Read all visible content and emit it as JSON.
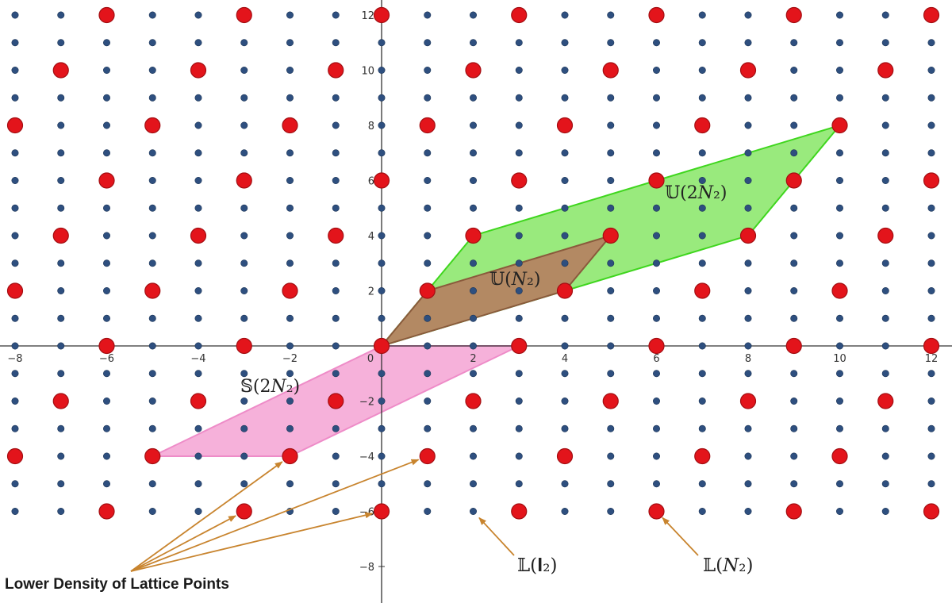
{
  "axes": {
    "x_range": [
      -8.4,
      12.4
    ],
    "y_range": [
      -9.3,
      12.3
    ],
    "x_ticks": [
      -8,
      -6,
      -4,
      -2,
      0,
      2,
      4,
      6,
      8,
      10,
      12
    ],
    "y_ticks": [
      12,
      10,
      8,
      6,
      4,
      2,
      -2,
      -4,
      -6,
      -8
    ],
    "x_tick_labels": [
      "−8",
      "−6",
      "−4",
      "−2",
      "0",
      "2",
      "4",
      "6",
      "8",
      "10",
      "12"
    ],
    "y_tick_labels": [
      "12",
      "10",
      "8",
      "6",
      "4",
      "2",
      "−2",
      "−4",
      "−6",
      "−8"
    ],
    "grid": false
  },
  "lattice_I2": {
    "label": "𝕃(𝐈₂)",
    "x_range": [
      -8,
      12
    ],
    "y_range": [
      -6,
      12
    ],
    "color": "#2e4f7f"
  },
  "lattice_N2": {
    "label": "𝕃(𝑁₂)",
    "basis": [
      [
        1,
        2
      ],
      [
        3,
        0
      ]
    ],
    "color": "#e3141b"
  },
  "regions": [
    {
      "name": "S(2N2)",
      "label": "𝕊(2𝑁₂)",
      "vertices": [
        [
          0,
          0
        ],
        [
          3,
          0
        ],
        [
          -2,
          -4
        ],
        [
          -5,
          -4
        ]
      ],
      "fill": "#f5a8d6",
      "stroke": "#ee8cc8"
    },
    {
      "name": "U(2N2)",
      "label": "𝕌(2𝑁₂)",
      "vertices": [
        [
          0,
          0
        ],
        [
          2,
          4
        ],
        [
          10,
          8
        ],
        [
          8,
          4
        ]
      ],
      "fill": "#8ee86f",
      "stroke": "#3fd61e"
    },
    {
      "name": "U(N2)",
      "label": "𝕌(𝑁₂)",
      "vertices": [
        [
          0,
          0
        ],
        [
          1,
          2
        ],
        [
          5,
          4
        ],
        [
          4,
          2
        ]
      ],
      "fill": "#b48462",
      "stroke": "#8a5a3c"
    }
  ],
  "annotations": {
    "note_text": "Lower Density of Lattice Points",
    "arrow_color": "#c8842e",
    "note_targets": [
      [
        -2,
        -4
      ],
      [
        1,
        -4
      ],
      [
        -3,
        -6
      ],
      [
        0,
        -6
      ]
    ],
    "I2_target": [
      2,
      -6
    ],
    "N2_target": [
      6,
      -6
    ]
  }
}
